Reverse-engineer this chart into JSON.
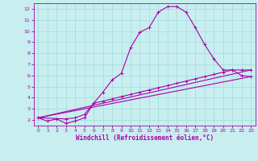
{
  "xlabel": "Windchill (Refroidissement éolien,°C)",
  "ylabel": "",
  "bg_color": "#c8eef0",
  "line_color": "#aa00aa",
  "grid_color": "#aadddd",
  "xlim": [
    -0.5,
    23.5
  ],
  "ylim": [
    1.5,
    12.5
  ],
  "xticks": [
    0,
    1,
    2,
    3,
    4,
    5,
    6,
    7,
    8,
    9,
    10,
    11,
    12,
    13,
    14,
    15,
    16,
    17,
    18,
    19,
    20,
    21,
    22,
    23
  ],
  "yticks": [
    2,
    3,
    4,
    5,
    6,
    7,
    8,
    9,
    10,
    11,
    12
  ],
  "line1_x": [
    0,
    1,
    2,
    3,
    4,
    5,
    6,
    7,
    8,
    9,
    10,
    11,
    12,
    13,
    14,
    15,
    16,
    17,
    18,
    19,
    20,
    21,
    22,
    23
  ],
  "line1_y": [
    2.2,
    1.9,
    2.1,
    1.7,
    1.9,
    2.2,
    3.5,
    4.5,
    5.6,
    6.2,
    8.5,
    9.9,
    10.3,
    11.7,
    12.2,
    12.2,
    11.7,
    10.3,
    8.8,
    7.5,
    6.5,
    6.5,
    6.0,
    5.9
  ],
  "line2_x": [
    0,
    3,
    4,
    5,
    6,
    7,
    8,
    9,
    10,
    11,
    12,
    13,
    14,
    15,
    16,
    17,
    18,
    19,
    20,
    21,
    22,
    23
  ],
  "line2_y": [
    2.2,
    2.1,
    2.2,
    2.5,
    3.5,
    3.7,
    3.9,
    4.1,
    4.3,
    4.5,
    4.7,
    4.9,
    5.1,
    5.3,
    5.5,
    5.7,
    5.9,
    6.1,
    6.3,
    6.5,
    6.5,
    6.5
  ],
  "line3_x": [
    0,
    23
  ],
  "line3_y": [
    2.2,
    5.9
  ],
  "line4_x": [
    0,
    23
  ],
  "line4_y": [
    2.2,
    6.5
  ]
}
